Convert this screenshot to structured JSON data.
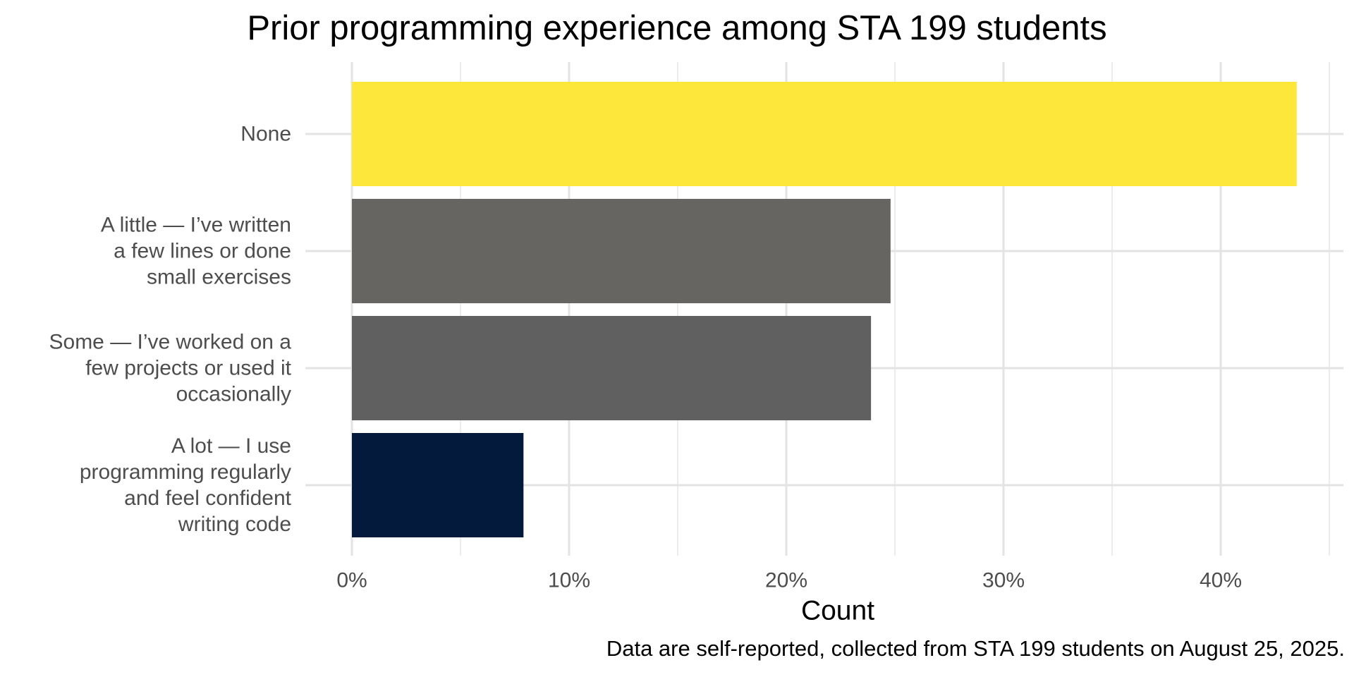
{
  "chart_data": {
    "type": "bar",
    "orientation": "horizontal",
    "title": "Prior programming experience among STA 199 students",
    "xlabel": "Count",
    "ylabel": "",
    "caption": "Data are self-reported, collected from STA 199 students on August 25, 2025.",
    "categories": [
      [
        "None"
      ],
      [
        "A little — I’ve written",
        "a few lines or done",
        "small exercises"
      ],
      [
        "Some — I’ve worked on a",
        "few projects or used it",
        "occasionally"
      ],
      [
        "A lot — I use",
        "programming regularly",
        "and feel confident",
        "writing code"
      ]
    ],
    "values": [
      43.5,
      24.8,
      23.9,
      7.9
    ],
    "colors": [
      "#FDE73A",
      "#666562",
      "#606060",
      "#041A3D"
    ],
    "xlim": [
      0,
      45
    ],
    "xticks": [
      0,
      10,
      20,
      30,
      40
    ],
    "xtick_labels": [
      "0%",
      "10%",
      "20%",
      "30%",
      "40%"
    ],
    "grid": true,
    "legend": "none"
  }
}
